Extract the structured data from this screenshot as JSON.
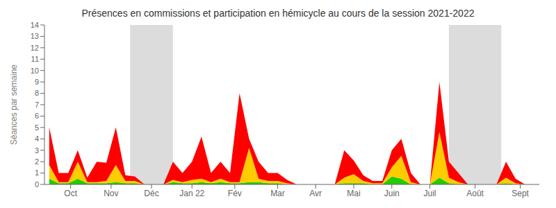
{
  "chart_data": {
    "type": "area",
    "stacked": true,
    "title": "Présences en commissions et participation en hémicycle au cours de la session 2021-2022",
    "ylabel": "Séances par semaine",
    "x": [
      0,
      1,
      2,
      3,
      4,
      5,
      6,
      7,
      8,
      9,
      10,
      11,
      12,
      13,
      14,
      15,
      16,
      17,
      18,
      19,
      20,
      21,
      22,
      23,
      24,
      25,
      26,
      27,
      28,
      29,
      30,
      31,
      32,
      33,
      34,
      35,
      36,
      37,
      38,
      39,
      40,
      41,
      42,
      43,
      44,
      45,
      46,
      47,
      48,
      49,
      50,
      51
    ],
    "xlim": [
      -0.5,
      51.5
    ],
    "xticks": [
      {
        "value": 2.25,
        "label": "Oct"
      },
      {
        "value": 6.5,
        "label": "Nov"
      },
      {
        "value": 10.75,
        "label": "Déc"
      },
      {
        "value": 15.0,
        "label": "Jan 22"
      },
      {
        "value": 19.5,
        "label": "Fév"
      },
      {
        "value": 24.0,
        "label": "Mar"
      },
      {
        "value": 28.0,
        "label": "Avr"
      },
      {
        "value": 32.0,
        "label": "Mai"
      },
      {
        "value": 36.0,
        "label": "Juin"
      },
      {
        "value": 40.0,
        "label": "Juil"
      },
      {
        "value": 44.75,
        "label": "Août"
      },
      {
        "value": 49.5,
        "label": "Sept"
      }
    ],
    "ylim": [
      0,
      14
    ],
    "yticks": [
      0,
      1,
      2,
      3,
      4,
      5,
      6,
      7,
      8,
      9,
      10,
      11,
      12,
      13,
      14
    ],
    "shaded_regions": [
      [
        8.5,
        13.0
      ],
      [
        42.0,
        47.5
      ]
    ],
    "grid": false,
    "series": [
      {
        "color": "#22cc00",
        "values": [
          0.5,
          0.1,
          0.1,
          0.5,
          0.1,
          0.1,
          0.1,
          0.2,
          0.1,
          0.1,
          0.0,
          0.0,
          0.0,
          0.2,
          0.1,
          0.1,
          0.2,
          0.1,
          0.2,
          0.1,
          0.1,
          0.2,
          0.2,
          0.1,
          0.1,
          0.0,
          0.0,
          0.0,
          0.0,
          0.0,
          0.0,
          0.1,
          0.1,
          0.1,
          0.0,
          0.0,
          0.7,
          0.5,
          0.0,
          0.0,
          0.0,
          0.6,
          0.1,
          0.0,
          0.0,
          0.0,
          0.0,
          0.0,
          0.1,
          0.0,
          0.0,
          0.0
        ]
      },
      {
        "color": "#ffcc00",
        "values": [
          1.2,
          0.1,
          0.1,
          1.5,
          0.1,
          0.1,
          0.2,
          1.5,
          0.2,
          0.2,
          0.0,
          0.0,
          0.0,
          0.2,
          0.1,
          0.3,
          0.3,
          0.1,
          0.3,
          0.1,
          0.1,
          3.0,
          0.3,
          0.2,
          0.2,
          0.1,
          0.0,
          0.0,
          0.0,
          0.0,
          0.0,
          0.5,
          0.8,
          0.2,
          0.1,
          0.1,
          0.8,
          2.0,
          0.2,
          0.0,
          0.0,
          4.0,
          0.5,
          0.2,
          0.0,
          0.0,
          0.0,
          0.0,
          0.5,
          0.1,
          0.0,
          0.0
        ]
      },
      {
        "color": "#ff0000",
        "values": [
          3.3,
          0.8,
          0.8,
          1.0,
          0.4,
          1.8,
          1.6,
          3.3,
          0.5,
          0.4,
          0.0,
          0.0,
          0.0,
          1.6,
          0.8,
          1.6,
          3.7,
          0.8,
          1.5,
          0.8,
          7.8,
          0.8,
          1.5,
          0.7,
          0.7,
          0.3,
          0.0,
          0.0,
          0.0,
          0.0,
          0.0,
          2.4,
          1.2,
          0.5,
          0.2,
          0.2,
          1.5,
          1.5,
          0.8,
          0.0,
          0.0,
          4.4,
          1.4,
          0.8,
          0.0,
          0.0,
          0.0,
          0.0,
          1.4,
          0.4,
          0.0,
          0.0
        ]
      }
    ]
  }
}
